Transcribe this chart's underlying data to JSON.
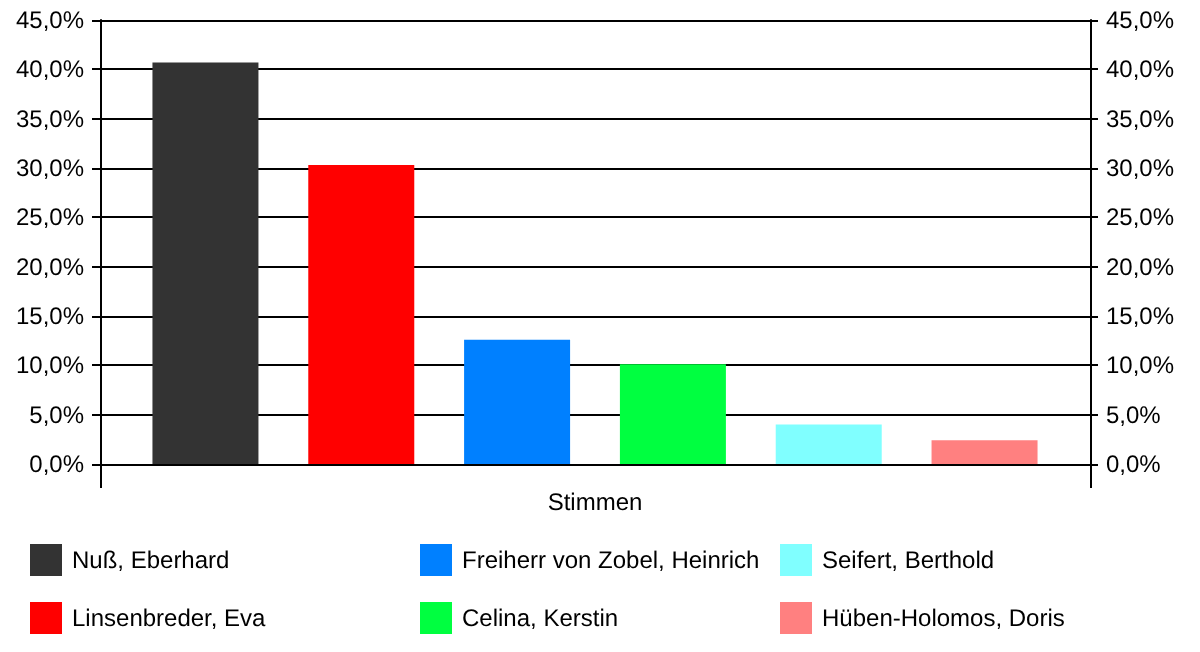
{
  "chart_data": {
    "type": "bar",
    "xlabel": "Stimmen",
    "categories": [
      null
    ],
    "series": [
      {
        "name": "Nuß, Eberhard",
        "color": "#333333",
        "values": [
          40.7
        ]
      },
      {
        "name": "Linsenbreder, Eva",
        "color": "#ff0000",
        "values": [
          30.3
        ]
      },
      {
        "name": "Freiherr von Zobel, Heinrich",
        "color": "#0080ff",
        "values": [
          12.6
        ]
      },
      {
        "name": "Celina, Kerstin",
        "color": "#00ff40",
        "values": [
          10.1
        ]
      },
      {
        "name": "Seifert, Berthold",
        "color": "#80ffff",
        "values": [
          4.0
        ]
      },
      {
        "name": "Hüben-Holomos, Doris",
        "color": "#ff8080",
        "values": [
          2.4
        ]
      }
    ],
    "ylim": [
      0,
      45
    ],
    "yticks": [
      {
        "value": 0,
        "label": "0,0%"
      },
      {
        "value": 5,
        "label": "5,0%"
      },
      {
        "value": 10,
        "label": "10,0%"
      },
      {
        "value": 15,
        "label": "15,0%"
      },
      {
        "value": 20,
        "label": "20,0%"
      },
      {
        "value": 25,
        "label": "25,0%"
      },
      {
        "value": 30,
        "label": "30,0%"
      },
      {
        "value": 35,
        "label": "35,0%"
      },
      {
        "value": 40,
        "label": "40,0%"
      },
      {
        "value": 45,
        "label": "45,0%"
      }
    ],
    "y2lim": [
      0,
      45
    ],
    "y2ticks": [
      {
        "value": 0,
        "label": "0,0%"
      },
      {
        "value": 5,
        "label": "5,0%"
      },
      {
        "value": 10,
        "label": "10,0%"
      },
      {
        "value": 15,
        "label": "15,0%"
      },
      {
        "value": 20,
        "label": "20,0%"
      },
      {
        "value": 25,
        "label": "25,0%"
      },
      {
        "value": 30,
        "label": "30,0%"
      },
      {
        "value": 35,
        "label": "35,0%"
      },
      {
        "value": 40,
        "label": "40,0%"
      },
      {
        "value": 45,
        "label": "45,0%"
      }
    ],
    "grid": "y",
    "legend": "bottom"
  }
}
